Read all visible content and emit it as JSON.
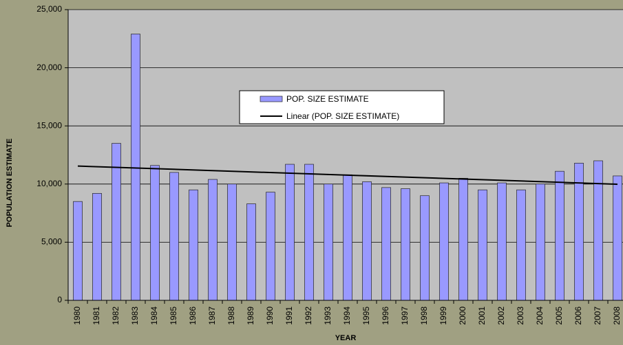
{
  "chart_data": {
    "type": "bar",
    "x_label": "YEAR",
    "y_label": "POPULATION ESTIMATE",
    "categories": [
      "1980",
      "1981",
      "1982",
      "1983",
      "1984",
      "1985",
      "1986",
      "1987",
      "1988",
      "1989",
      "1990",
      "1991",
      "1992",
      "1993",
      "1994",
      "1995",
      "1996",
      "1997",
      "1998",
      "1999",
      "2000",
      "2001",
      "2002",
      "2003",
      "2004",
      "2005",
      "2006",
      "2007",
      "2008"
    ],
    "series": [
      {
        "name": "POP. SIZE ESTIMATE",
        "color": "#9999ff",
        "values": [
          8500,
          9200,
          13500,
          22900,
          11600,
          11000,
          9500,
          10400,
          10000,
          8300,
          9300,
          11700,
          11700,
          10000,
          10800,
          10200,
          9700,
          9600,
          9000,
          10100,
          10500,
          9500,
          10100,
          9500,
          10000,
          11100,
          11800,
          12000,
          10700
        ]
      }
    ],
    "trendline": {
      "name": "Linear (POP. SIZE ESTIMATE)",
      "color": "#000000"
    },
    "ylim": [
      0,
      25000
    ],
    "yticks": [
      0,
      {
        "value": 5000,
        "label": "5,000"
      },
      {
        "value": 10000,
        "label": "10,000"
      },
      {
        "value": 15000,
        "label": "15,000"
      },
      {
        "value": 20000,
        "label": "20,000"
      },
      {
        "value": 25000,
        "label": "25,000"
      }
    ],
    "grid": true
  }
}
